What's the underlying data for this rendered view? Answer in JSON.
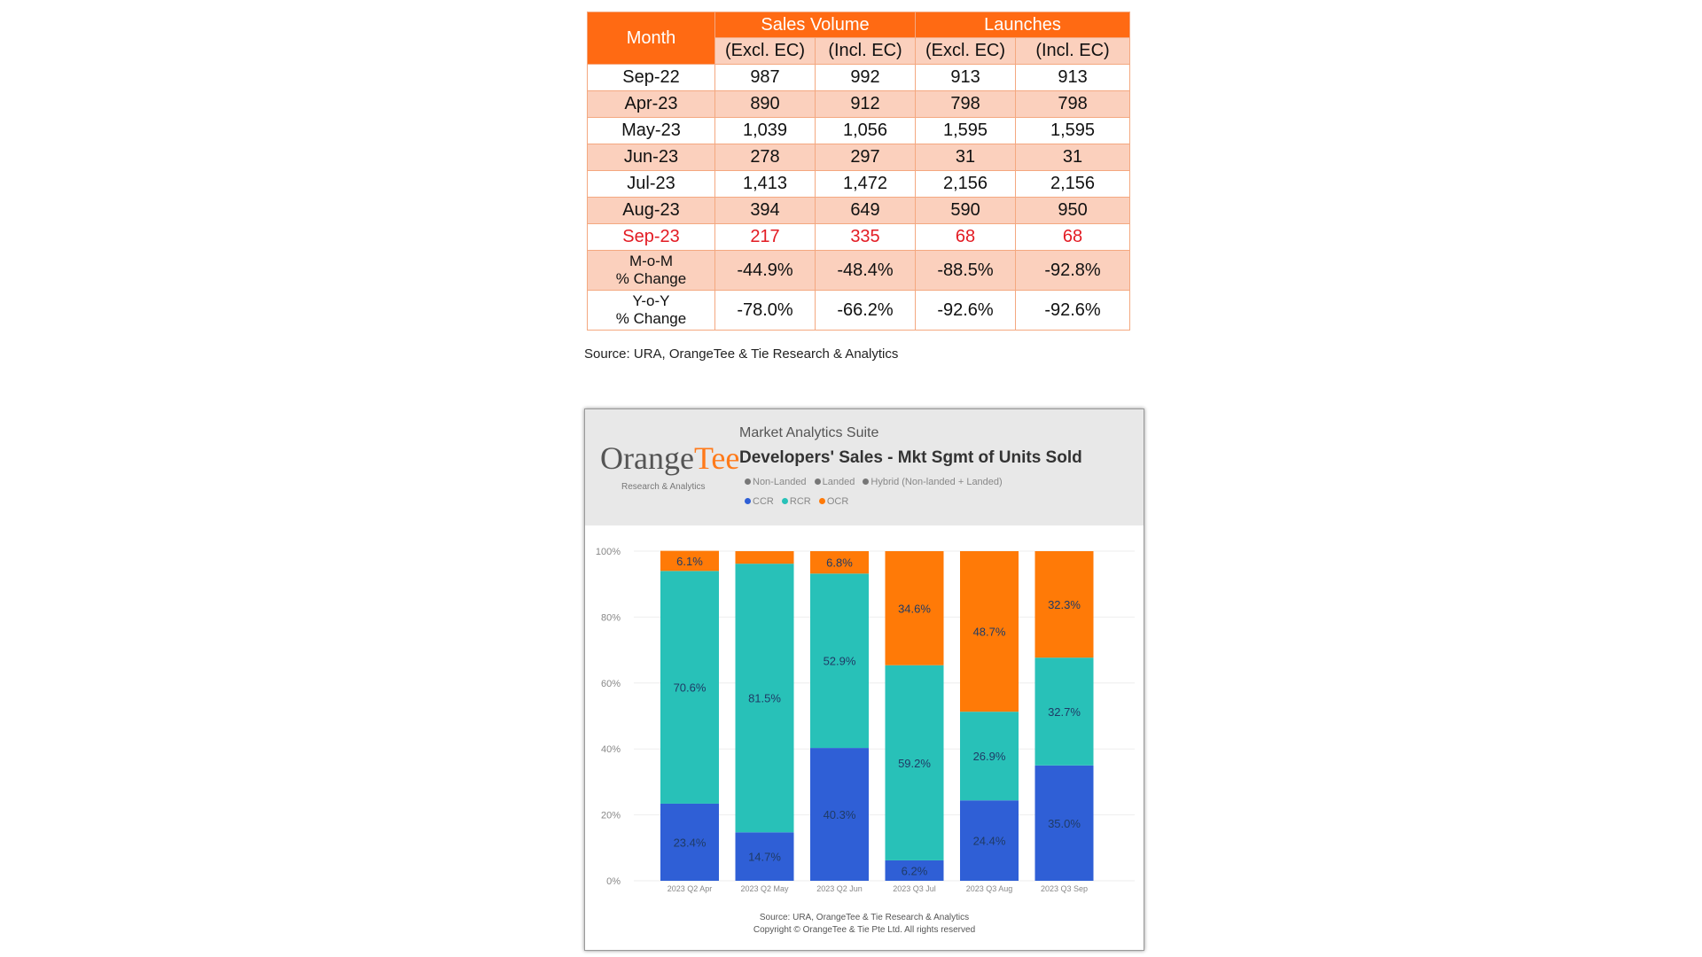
{
  "table": {
    "headers": {
      "month": "Month",
      "sales_volume": "Sales Volume",
      "launches": "Launches",
      "sub": [
        "(Excl. EC)",
        "(Incl. EC)",
        "(Excl. EC)",
        "(Incl. EC)"
      ]
    },
    "rows": [
      {
        "month": "Sep-22",
        "values": [
          "987",
          "992",
          "913",
          "913"
        ]
      },
      {
        "month": "Apr-23",
        "values": [
          "890",
          "912",
          "798",
          "798"
        ]
      },
      {
        "month": "May-23",
        "values": [
          "1,039",
          "1,056",
          "1,595",
          "1,595"
        ]
      },
      {
        "month": "Jun-23",
        "values": [
          "278",
          "297",
          "31",
          "31"
        ]
      },
      {
        "month": "Jul-23",
        "values": [
          "1,413",
          "1,472",
          "2,156",
          "2,156"
        ]
      },
      {
        "month": "Aug-23",
        "values": [
          "394",
          "649",
          "590",
          "950"
        ]
      },
      {
        "month": "Sep-23",
        "values": [
          "217",
          "335",
          "68",
          "68"
        ]
      }
    ],
    "changes": [
      {
        "label_1": "M-o-M",
        "label_2": "% Change",
        "values": [
          "-44.9%",
          "-48.4%",
          "-88.5%",
          "-92.8%"
        ]
      },
      {
        "label_1": "Y-o-Y",
        "label_2": "% Change",
        "values": [
          "-78.0%",
          "-66.2%",
          "-92.6%",
          "-92.6%"
        ]
      }
    ],
    "source": "Source: URA, OrangeTee & Tie Research & Analytics",
    "colors": {
      "header": "#ff6a13",
      "alt_row": "#fbd0bd",
      "highlight_text": "#e31b23"
    }
  },
  "chart_panel": {
    "logo_part_1": "Orange",
    "logo_part_2": "Tee",
    "logo_sub": "Research & Analytics",
    "suite_label": "Market Analytics Suite",
    "legend_top": [
      {
        "label": "Non-Landed",
        "color": "#777777"
      },
      {
        "label": "Landed",
        "color": "#777777"
      },
      {
        "label": "Hybrid (Non-landed + Landed)",
        "color": "#777777"
      }
    ],
    "source": "Source: URA, OrangeTee & Tie Research & Analytics",
    "copyright": "Copyright © OrangeTee & Tie Pte Ltd. All rights reserved"
  },
  "chart_data": {
    "type": "bar",
    "stacked": true,
    "title": "Developers' Sales - Mkt Sgmt of Units Sold",
    "categories": [
      "2023 Q2 Apr",
      "2023 Q2 May",
      "2023 Q2 Jun",
      "2023 Q3 Jul",
      "2023 Q3 Aug",
      "2023 Q3 Sep"
    ],
    "series": [
      {
        "name": "CCR",
        "color": "#2f5fd6",
        "values": [
          23.4,
          14.7,
          40.3,
          6.2,
          24.4,
          35.0
        ],
        "labels": [
          "23.4%",
          "14.7%",
          "40.3%",
          "6.2%",
          "24.4%",
          "35.0%"
        ]
      },
      {
        "name": "RCR",
        "color": "#28c1b8",
        "values": [
          70.6,
          81.5,
          52.9,
          59.2,
          26.9,
          32.7
        ],
        "labels": [
          "70.6%",
          "81.5%",
          "52.9%",
          "59.2%",
          "26.9%",
          "32.7%"
        ]
      },
      {
        "name": "OCR",
        "color": "#ff7a07",
        "values": [
          6.1,
          3.8,
          6.8,
          34.6,
          48.7,
          32.3
        ],
        "labels": [
          "6.1%",
          "",
          "6.8%",
          "34.6%",
          "48.7%",
          "32.3%"
        ]
      }
    ],
    "yticks": [
      "0%",
      "20%",
      "40%",
      "60%",
      "80%",
      "100%"
    ],
    "ylim": [
      0,
      100
    ],
    "grid": true,
    "legend_position": "top"
  }
}
